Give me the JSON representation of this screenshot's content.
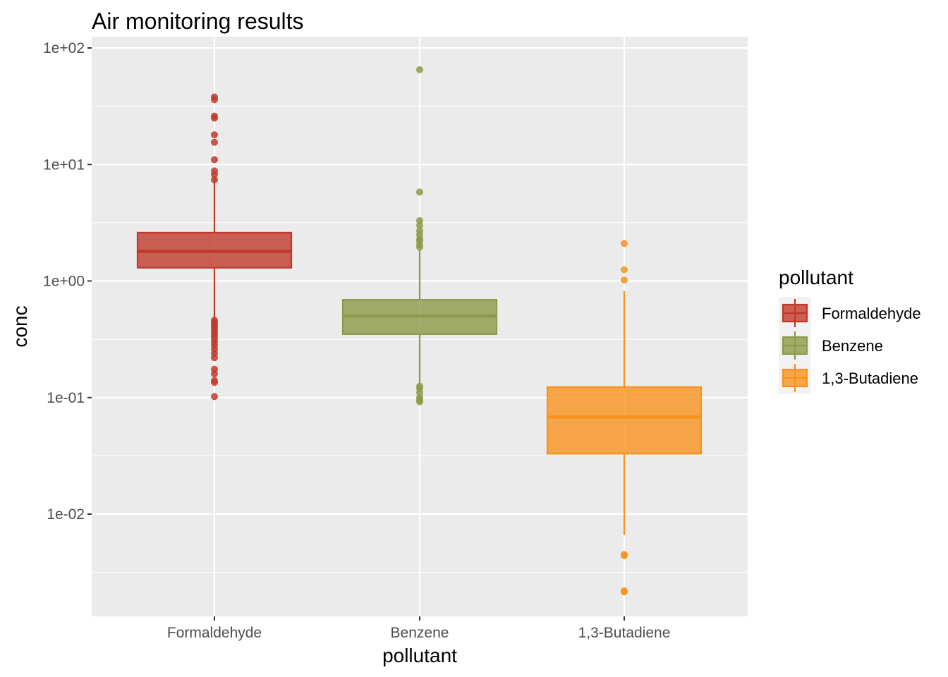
{
  "chart_data": {
    "type": "boxplot",
    "title": "Air monitoring results",
    "xlabel": "pollutant",
    "ylabel": "conc",
    "y_scale": "log10",
    "ylim": [
      0.0013,
      100
    ],
    "y_ticks": [
      {
        "value": 100,
        "label": "1e+02"
      },
      {
        "value": 10,
        "label": "1e+01"
      },
      {
        "value": 1,
        "label": "1e+00"
      },
      {
        "value": 0.1,
        "label": "1e-01"
      },
      {
        "value": 0.01,
        "label": "1e-02"
      }
    ],
    "grid": true,
    "legend": {
      "title": "pollutant",
      "position": "right"
    },
    "categories": [
      "Formaldehyde",
      "Benzene",
      "1,3-Butadiene"
    ],
    "series": [
      {
        "name": "Formaldehyde",
        "color": "#c0392b",
        "whisker_low": 0.46,
        "q1": 1.3,
        "median": 1.8,
        "q3": 2.6,
        "whisker_high": 7.8,
        "outliers": [
          38,
          36,
          26,
          25,
          18,
          15.5,
          11,
          8.8,
          8.2,
          7.4,
          0.46,
          0.44,
          0.42,
          0.4,
          0.38,
          0.36,
          0.34,
          0.32,
          0.3,
          0.28,
          0.26,
          0.24,
          0.22,
          0.175,
          0.16,
          0.14,
          0.135,
          0.102
        ]
      },
      {
        "name": "Benzene",
        "color": "#8c9a48",
        "whisker_low": 0.13,
        "q1": 0.35,
        "median": 0.5,
        "q3": 0.69,
        "whisker_high": 1.85,
        "outliers": [
          65,
          5.8,
          3.3,
          3.0,
          2.7,
          2.5,
          2.3,
          2.2,
          2.05,
          1.95,
          0.125,
          0.12,
          0.11,
          0.1,
          0.095,
          0.092
        ]
      },
      {
        "name": "1,3-Butadiene",
        "color": "#f7931e",
        "whisker_low": 0.0066,
        "q1": 0.033,
        "median": 0.068,
        "q3": 0.123,
        "whisker_high": 0.82,
        "outliers": [
          2.1,
          1.25,
          1.02,
          0.0045,
          0.0044,
          0.0022,
          0.00215
        ]
      }
    ]
  }
}
